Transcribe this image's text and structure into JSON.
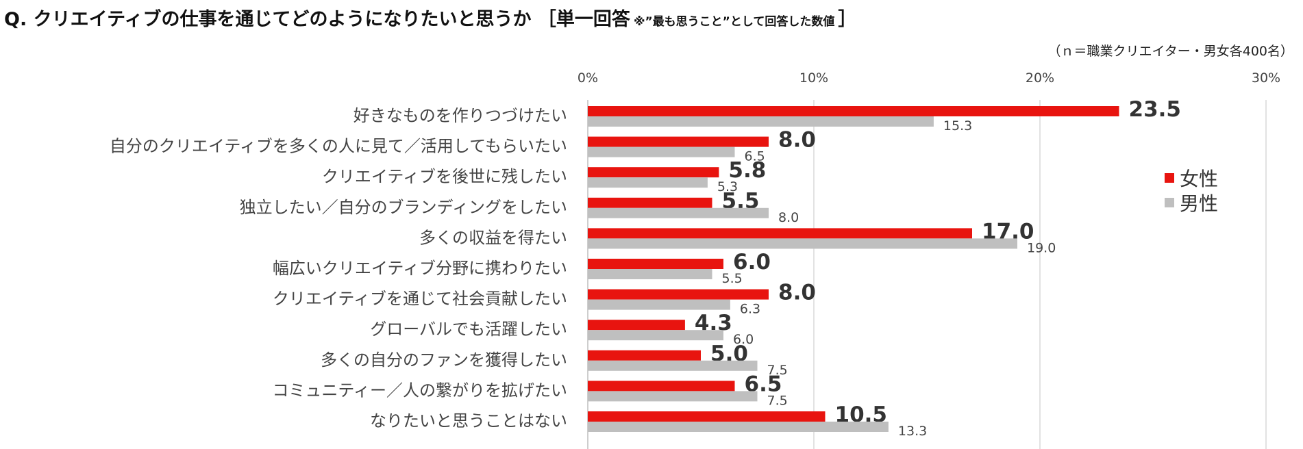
{
  "title": {
    "main": "Q. クリエイティブの仕事を通じてどのようになりたいと思うか ［単一回答",
    "note": "※”最も思うこと”として回答した数値",
    "close": "］"
  },
  "subtitle": "（ｎ＝職業クリエイター・男女各400名）",
  "colors": {
    "female": "#e8140f",
    "male": "#bfbfbf"
  },
  "chart_data": {
    "type": "bar",
    "orientation": "horizontal",
    "categories": [
      "好きなものを作りつづけたい",
      "自分のクリエイティブを多くの人に見て／活用してもらいたい",
      "クリエイティブを後世に残したい",
      "独立したい／自分のブランディングをしたい",
      "多くの収益を得たい",
      "幅広いクリエイティブ分野に携わりたい",
      "クリエイティブを通じて社会貢献したい",
      "グローバルでも活躍したい",
      "多くの自分のファンを獲得したい",
      "コミュニティー／人の繋がりを拡げたい",
      "なりたいと思うことはない"
    ],
    "series": [
      {
        "name": "女性",
        "values": [
          23.5,
          8.0,
          5.8,
          5.5,
          17.0,
          6.0,
          8.0,
          4.3,
          5.0,
          6.5,
          10.5
        ],
        "labels": [
          "23.5",
          "8.0",
          "5.8",
          "5.5",
          "17.0",
          "6.0",
          "8.0",
          "4.3",
          "5.0",
          "6.5",
          "10.5"
        ]
      },
      {
        "name": "男性",
        "values": [
          15.3,
          6.5,
          5.3,
          8.0,
          19.0,
          5.5,
          6.3,
          6.0,
          7.5,
          7.5,
          13.3
        ],
        "labels": [
          "15.3",
          "6.5",
          "5.3",
          "8.0",
          "19.0",
          "5.5",
          "6.3",
          "6.0",
          "7.5",
          "7.5",
          "13.3"
        ]
      }
    ],
    "xlim": [
      0,
      30
    ],
    "ticks": [
      0,
      10,
      20,
      30
    ],
    "tick_labels": [
      "0%",
      "10%",
      "20%",
      "30%"
    ],
    "grid": true,
    "legend_position": "right"
  }
}
